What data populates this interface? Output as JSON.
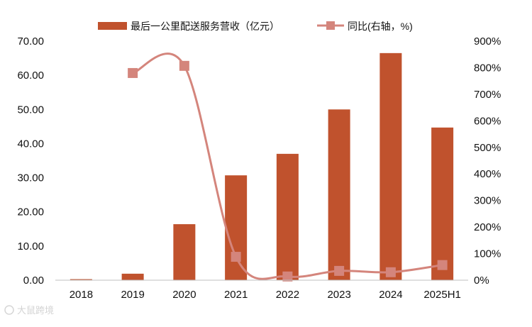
{
  "chart_data": {
    "type": "bar",
    "categories": [
      "2018",
      "2019",
      "2020",
      "2021",
      "2022",
      "2023",
      "2024",
      "2025H1"
    ],
    "series": [
      {
        "name": "最后一公里配送服务营收（亿元）",
        "type": "bar",
        "axis": "left",
        "values": [
          0.3,
          1.9,
          16.4,
          30.7,
          37.0,
          50.0,
          66.5,
          44.7
        ]
      },
      {
        "name": "同比(右轴，%)",
        "type": "line",
        "axis": "right",
        "values": [
          null,
          780,
          807,
          88,
          14,
          35,
          30,
          57
        ]
      }
    ],
    "y_left": {
      "ylim": [
        0,
        70
      ],
      "ticks": [
        "0.00",
        "10.00",
        "20.00",
        "30.00",
        "40.00",
        "50.00",
        "60.00",
        "70.00"
      ]
    },
    "y_right": {
      "ylim": [
        0,
        900
      ],
      "ticks": [
        "0%",
        "100%",
        "200%",
        "300%",
        "400%",
        "500%",
        "600%",
        "700%",
        "800%",
        "900%"
      ]
    },
    "legend_position": "top",
    "grid": false,
    "colors": {
      "bar": "#c0522d",
      "line": "#d4857c"
    }
  },
  "watermark": "大鼠跨境"
}
